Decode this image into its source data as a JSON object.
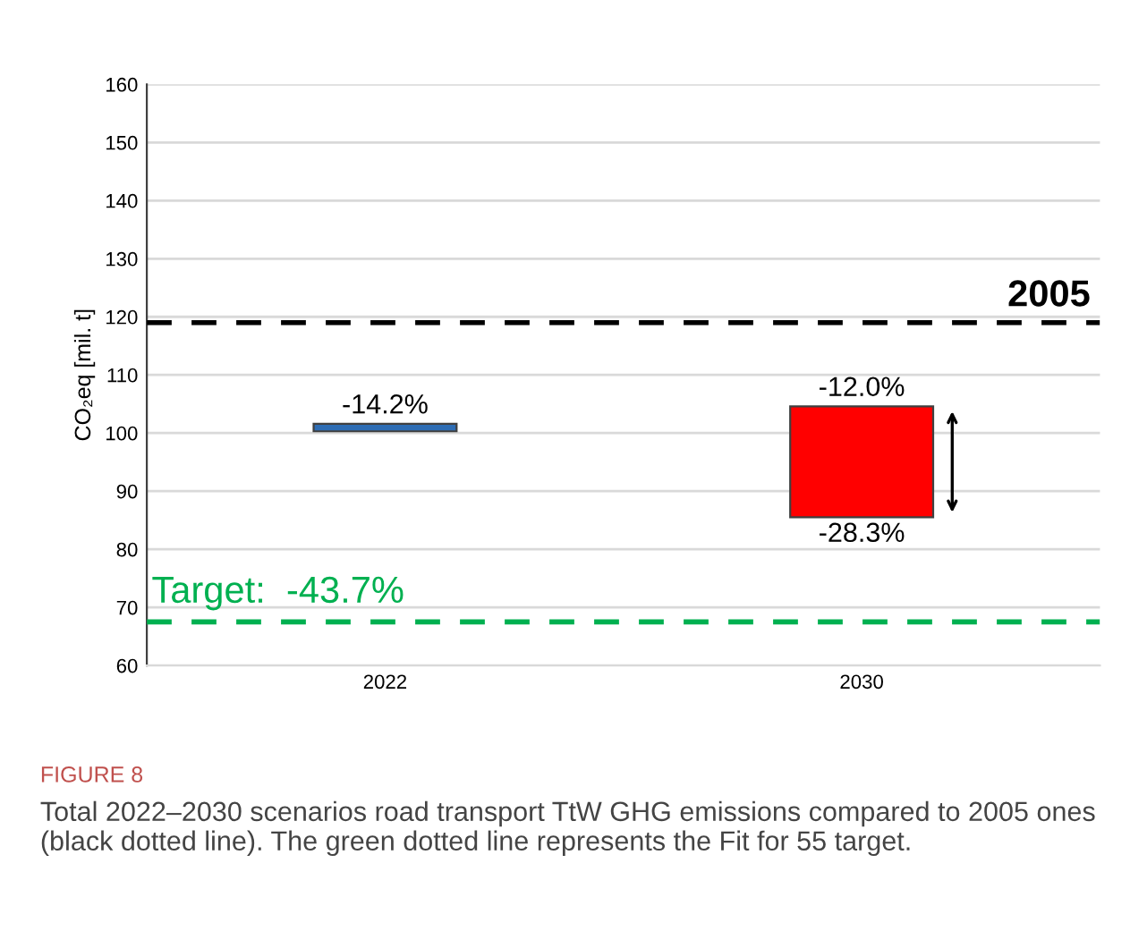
{
  "chart_data": {
    "type": "bar",
    "ylabel": "CO₂eq [mil. t]",
    "categories": [
      "2022",
      "2030"
    ],
    "base": [
      100.3,
      85.5
    ],
    "values": [
      1.3,
      19.1
    ],
    "colors": [
      "#2e6db4",
      "#ff0000"
    ],
    "ylim": [
      60,
      160
    ],
    "yticks": [
      60,
      70,
      80,
      90,
      100,
      110,
      120,
      130,
      140,
      150,
      160
    ],
    "grid": "y",
    "ref_lines": [
      {
        "axis": "y",
        "value": 119,
        "color": "#000000",
        "line_style": "dashed"
      },
      {
        "axis": "y",
        "value": 67.5,
        "color": "#00b050",
        "line_style": "dashed"
      }
    ],
    "annotations": [
      {
        "text": "-14.2%",
        "x": "2022",
        "y": 101.6
      },
      {
        "text": "-12.0%",
        "x": "2030",
        "y": 104.6
      },
      {
        "text": "-28.3%",
        "x": "2030",
        "y": 85.5
      },
      {
        "text": "2005",
        "y": 119
      },
      {
        "text": "Target:  -43.7%",
        "y": 67.5
      },
      "FIGURE 8",
      "Total 2022–2030 scenarios road transport TtW GHG emissions compared to 2005 ones (black dotted line). The green dotted line represents the Fit for 55 target."
    ]
  }
}
